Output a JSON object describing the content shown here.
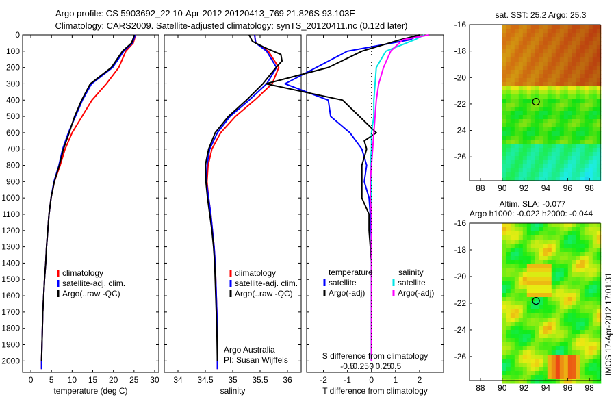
{
  "title": {
    "line1": "Argo profile: CS 5903692_22 10-Apr-2012 20120413_769 21.826S 93.103E",
    "line2": "Climatology: CARS2009. Satellite-adjusted climatology: synTS_20120411.nc (0.12d later)"
  },
  "side_stamp": "IMOS 17-Apr-2012 17:01:31",
  "colors": {
    "climatology": "#ff0000",
    "satellite": "#0000ff",
    "argo": "#000000",
    "salinity_satellite": "#00e5e5",
    "salinity_argo": "#ff00ff"
  },
  "chart_data": [
    {
      "type": "line",
      "panel": "temperature",
      "xlabel": "temperature (deg C)",
      "xlim": [
        -2,
        31
      ],
      "xticks": [
        0,
        5,
        10,
        15,
        20,
        25,
        30
      ],
      "ylim": [
        2070,
        0
      ],
      "yticks": [
        0,
        100,
        200,
        300,
        400,
        500,
        600,
        700,
        800,
        900,
        1000,
        1100,
        1200,
        1300,
        1400,
        1500,
        1600,
        1700,
        1800,
        1900,
        2000
      ],
      "legend": [
        "climatology",
        "satellite-adj. clim.",
        "Argo(..raw -QC)"
      ],
      "legend_position": "lower-right",
      "series": [
        {
          "name": "climatology",
          "color": "#ff0000",
          "x": [
            25.4,
            24.8,
            23.0,
            21.3,
            18.3,
            14.8,
            12.4,
            10.0,
            8.3,
            7.1,
            5.7,
            4.9,
            4.4,
            4.1,
            3.8,
            3.6,
            3.3,
            3.1,
            2.9,
            2.8,
            2.7,
            2.6,
            2.6
          ],
          "y": [
            0,
            50,
            100,
            200,
            300,
            400,
            500,
            600,
            700,
            800,
            900,
            1000,
            1100,
            1200,
            1300,
            1400,
            1500,
            1600,
            1700,
            1800,
            1900,
            2000,
            2050
          ]
        },
        {
          "name": "satellite-adj. clim.",
          "color": "#0000ff",
          "x": [
            25.3,
            24.6,
            22.5,
            19.8,
            14.7,
            12.5,
            10.8,
            9.1,
            7.7,
            6.8,
            5.6,
            4.9,
            4.4,
            4.1,
            3.8,
            3.6,
            3.3,
            3.1,
            2.9,
            2.8,
            2.7,
            2.6,
            2.6
          ],
          "y": [
            0,
            50,
            100,
            200,
            300,
            400,
            500,
            600,
            700,
            800,
            900,
            1000,
            1100,
            1200,
            1300,
            1400,
            1500,
            1600,
            1700,
            1800,
            1900,
            2000,
            2050
          ]
        },
        {
          "name": "Argo(..raw -QC)",
          "color": "#000000",
          "x": [
            25.1,
            24.4,
            22.2,
            19.5,
            14.4,
            12.3,
            10.6,
            9.3,
            7.9,
            6.9,
            5.7,
            4.9,
            4.4,
            4.1,
            3.8,
            3.6,
            3.3,
            3.1,
            2.9,
            2.8,
            2.7,
            2.6
          ],
          "y": [
            0,
            50,
            100,
            200,
            300,
            400,
            500,
            600,
            700,
            800,
            900,
            1000,
            1100,
            1200,
            1300,
            1400,
            1500,
            1600,
            1700,
            1800,
            1900,
            2000
          ]
        }
      ]
    },
    {
      "type": "line",
      "panel": "salinity",
      "xlabel": "salinity",
      "xlim": [
        33.75,
        36.25
      ],
      "xticks": [
        34,
        34.5,
        35,
        35.5,
        36
      ],
      "xtick_labels": [
        "34",
        "34.5",
        "35",
        "35.5",
        "36"
      ],
      "ylim": [
        2070,
        0
      ],
      "legend": [
        "climatology",
        "satellite-adj. clim.",
        "Argo(..raw -QC)"
      ],
      "legend_position": "lower-right",
      "annotation": [
        "Argo Australia",
        "PI: Susan Wijffels"
      ],
      "series": [
        {
          "name": "climatology",
          "color": "#ff0000",
          "x": [
            35.4,
            35.42,
            35.65,
            35.84,
            35.72,
            35.4,
            35.05,
            34.78,
            34.62,
            34.55,
            34.53,
            34.56,
            34.6,
            34.63,
            34.66,
            34.68,
            34.69,
            34.7,
            34.71,
            34.72,
            34.72,
            34.72
          ],
          "y": [
            0,
            50,
            100,
            200,
            300,
            400,
            500,
            600,
            700,
            800,
            900,
            1000,
            1100,
            1200,
            1300,
            1400,
            1500,
            1600,
            1700,
            1800,
            1900,
            2050
          ]
        },
        {
          "name": "satellite-adj. clim.",
          "color": "#0000ff",
          "x": [
            35.4,
            35.42,
            35.62,
            35.8,
            35.62,
            35.3,
            34.95,
            34.72,
            34.58,
            34.53,
            34.52,
            34.56,
            34.6,
            34.63,
            34.66,
            34.68,
            34.69,
            34.7,
            34.71,
            34.72,
            34.72,
            34.72
          ],
          "y": [
            0,
            50,
            100,
            200,
            300,
            400,
            500,
            600,
            700,
            800,
            900,
            1000,
            1100,
            1200,
            1300,
            1400,
            1500,
            1600,
            1700,
            1800,
            1900,
            2050
          ]
        },
        {
          "name": "Argo(..raw -QC)",
          "color": "#000000",
          "x": [
            35.3,
            35.36,
            35.6,
            35.88,
            35.9,
            35.79,
            35.55,
            35.25,
            34.92,
            34.68,
            34.56,
            34.5,
            34.51,
            34.54,
            34.58,
            34.62,
            34.65,
            34.67,
            34.68,
            34.69,
            34.7,
            34.71,
            34.72
          ],
          "y": [
            0,
            40,
            80,
            120,
            160,
            200,
            300,
            400,
            500,
            600,
            700,
            800,
            900,
            1000,
            1100,
            1200,
            1300,
            1400,
            1500,
            1600,
            1700,
            1800,
            2000
          ]
        }
      ]
    },
    {
      "type": "line",
      "panel": "difference",
      "xlabel": "T difference from climatology",
      "top_axis_label": "S difference from climatology",
      "xlim": [
        -2.7,
        3.0
      ],
      "xticks": [
        -2,
        -1,
        0,
        1,
        2
      ],
      "top_xticks": [
        -0.5,
        -0.25,
        0,
        0.25,
        0.5
      ],
      "ylim": [
        2070,
        0
      ],
      "legend_left_title": "temperature",
      "legend_right_title": "salinity",
      "legend": [
        "satellite",
        "Argo(-adj)",
        "satellite",
        "Argo(-adj)"
      ],
      "series": [
        {
          "name": "satellite",
          "color": "#0000ff",
          "x": [
            2.0,
            1.6,
            -1.0,
            -2.3,
            -3.6,
            -1.8,
            -1.7,
            -0.9,
            -0.4,
            -0.2,
            -0.3,
            -0.1,
            -0.05,
            -0.02,
            0,
            0,
            0,
            0,
            0,
            0,
            0,
            0
          ],
          "y": [
            0,
            30,
            100,
            200,
            300,
            400,
            500,
            600,
            700,
            800,
            900,
            1000,
            1100,
            1200,
            1300,
            1400,
            1500,
            1600,
            1700,
            1800,
            1900,
            2000
          ]
        },
        {
          "name": "Argo(-adj)",
          "color": "#000000",
          "x": [
            2.0,
            1.2,
            -0.4,
            -1.8,
            -4.4,
            -1.2,
            -0.5,
            0.2,
            -0.3,
            -0.2,
            -0.4,
            -0.4,
            -0.1,
            -0.1,
            -0.05,
            0,
            0,
            0,
            0,
            0,
            0,
            0
          ],
          "y": [
            0,
            30,
            100,
            200,
            300,
            400,
            500,
            600,
            650,
            700,
            800,
            1000,
            1100,
            1200,
            1300,
            1400,
            1500,
            1600,
            1700,
            1800,
            1900,
            2000
          ]
        },
        {
          "name": "satellite",
          "color": "#00e5e5",
          "x": [
            2.2,
            1.8,
            0.6,
            0.2,
            0.15,
            0.1,
            0.1,
            0.0,
            0.0,
            -0.05,
            0.0,
            0.0,
            0.0,
            0.0,
            0.0,
            0.0,
            0.0,
            0.0,
            0.0,
            0.0,
            0.0
          ],
          "y": [
            0,
            30,
            100,
            200,
            300,
            400,
            500,
            600,
            700,
            800,
            900,
            1000,
            1100,
            1200,
            1300,
            1400,
            1500,
            1600,
            1700,
            1800,
            2000
          ]
        },
        {
          "name": "Argo(-adj)",
          "color": "#ff00ff",
          "x": [
            2.4,
            1.3,
            0.8,
            0.5,
            0.3,
            0.2,
            0.15,
            0.1,
            0.05,
            0.0,
            -0.05,
            -0.05,
            0.0,
            0.0,
            0.0,
            0.0,
            0.0,
            0.0,
            0.0,
            0.0,
            0.0
          ],
          "y": [
            0,
            30,
            100,
            200,
            300,
            400,
            500,
            600,
            700,
            800,
            900,
            1000,
            1100,
            1200,
            1300,
            1400,
            1500,
            1600,
            1700,
            1800,
            2000
          ]
        }
      ]
    },
    {
      "type": "heatmap",
      "panel": "sst-map",
      "title": "sat. SST: 25.2  Argo: 25.3",
      "xlim": [
        87,
        99
      ],
      "ylim": [
        -27.8,
        -16
      ],
      "xticks": [
        88,
        90,
        92,
        94,
        96,
        98
      ],
      "yticks": [
        -16,
        -18,
        -20,
        -22,
        -24,
        -26
      ],
      "data_extent_x": [
        90,
        99
      ],
      "marker": {
        "x": 93.103,
        "y": -21.826
      }
    },
    {
      "type": "heatmap",
      "panel": "sla-map",
      "title": "Altim. SLA: -0.077",
      "subtitle": "Argo h1000: -0.022  h2000: -0.044",
      "xlim": [
        87,
        99
      ],
      "ylim": [
        -27.8,
        -16
      ],
      "xticks": [
        88,
        90,
        92,
        94,
        96,
        98
      ],
      "yticks": [
        -16,
        -18,
        -20,
        -22,
        -24,
        -26
      ],
      "data_extent_x": [
        90,
        99
      ],
      "marker": {
        "x": 93.103,
        "y": -21.826
      }
    }
  ]
}
